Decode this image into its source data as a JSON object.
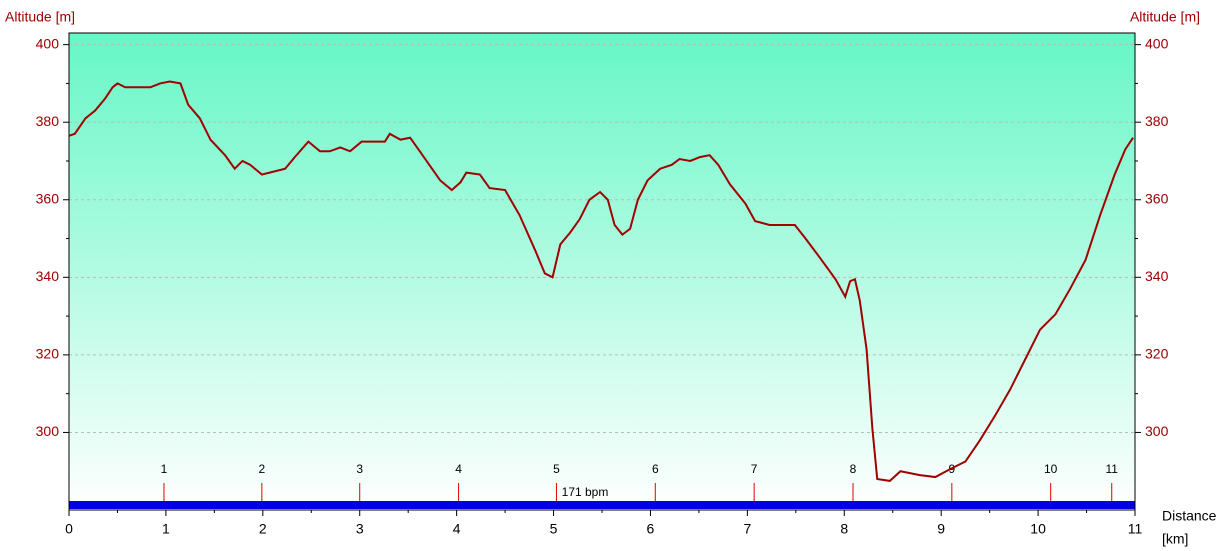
{
  "chart_data": {
    "type": "line",
    "y_label": "Altitude [m]",
    "y2_label": "Altitude [m]",
    "x_label_lines": [
      "Distance",
      "[km]"
    ],
    "color": "#a00000",
    "background": [
      "#66f7c6",
      "#ffffff"
    ],
    "x": [
      0,
      0.06,
      0.17,
      0.27,
      0.37,
      0.45,
      0.5,
      0.58,
      0.71,
      0.84,
      0.94,
      1.04,
      1.15,
      1.23,
      1.35,
      1.46,
      1.61,
      1.71,
      1.79,
      1.87,
      1.99,
      2.07,
      2.23,
      2.33,
      2.47,
      2.59,
      2.69,
      2.8,
      2.9,
      3.02,
      3.26,
      3.31,
      3.42,
      3.52,
      3.62,
      3.83,
      3.95,
      4.04,
      4.1,
      4.24,
      4.34,
      4.5,
      4.65,
      4.81,
      4.91,
      4.99,
      5.07,
      5.17,
      5.27,
      5.37,
      5.48,
      5.56,
      5.63,
      5.71,
      5.79,
      5.87,
      5.97,
      6.1,
      6.22,
      6.3,
      6.41,
      6.51,
      6.61,
      6.7,
      6.82,
      6.98,
      7.08,
      7.23,
      7.49,
      7.6,
      7.75,
      7.91,
      8.01,
      8.06,
      8.11,
      8.16,
      8.23,
      8.29,
      8.34,
      8.47,
      8.58,
      8.78,
      8.94,
      9.09,
      9.25,
      9.4,
      9.56,
      9.71,
      9.87,
      10.02,
      10.18,
      10.33,
      10.49,
      10.64,
      10.79,
      10.9,
      10.98
    ],
    "values": [
      376.5,
      377,
      381,
      383,
      386,
      389,
      390,
      389,
      389,
      389,
      390,
      390.5,
      390,
      384.5,
      381,
      375.5,
      371.5,
      368,
      370,
      369,
      366.5,
      367,
      368,
      371,
      375,
      372.5,
      372.5,
      373.5,
      372.5,
      375,
      375,
      377,
      375.5,
      376,
      372.5,
      365,
      362.5,
      364.5,
      367,
      366.5,
      363,
      362.5,
      356,
      347,
      341,
      340,
      348.5,
      351.5,
      355,
      360,
      362,
      360,
      353.5,
      351,
      352.5,
      360,
      365,
      368,
      369,
      370.5,
      370,
      371,
      371.5,
      369,
      364,
      359,
      354.5,
      353.5,
      353.5,
      350,
      345,
      339.5,
      335,
      339,
      339.5,
      334,
      321.5,
      301,
      288,
      287.5,
      290,
      289,
      288.5,
      290.5,
      292.5,
      298,
      304.5,
      311,
      319,
      326.5,
      330.5,
      337,
      344.5,
      356,
      366.5,
      373,
      376
    ],
    "xlim": [
      0,
      11
    ],
    "xticks": [
      0,
      1,
      2,
      3,
      4,
      5,
      6,
      7,
      8,
      9,
      10,
      11
    ],
    "ylim": [
      280,
      403
    ],
    "yticks": [
      300,
      320,
      340,
      360,
      380,
      400
    ],
    "grid": true,
    "lap_markers": [
      {
        "value": 0.98,
        "label": "1"
      },
      {
        "value": 1.99,
        "label": "2"
      },
      {
        "value": 3.0,
        "label": "3"
      },
      {
        "value": 4.02,
        "label": "4"
      },
      {
        "value": 5.03,
        "label": "5"
      },
      {
        "value": 6.05,
        "label": "6"
      },
      {
        "value": 7.07,
        "label": "7"
      },
      {
        "value": 8.09,
        "label": "8"
      },
      {
        "value": 9.11,
        "label": "9"
      },
      {
        "value": 10.13,
        "label": "10"
      },
      {
        "value": 10.76,
        "label": "11"
      }
    ],
    "heart_rate_label": "171 bpm"
  }
}
